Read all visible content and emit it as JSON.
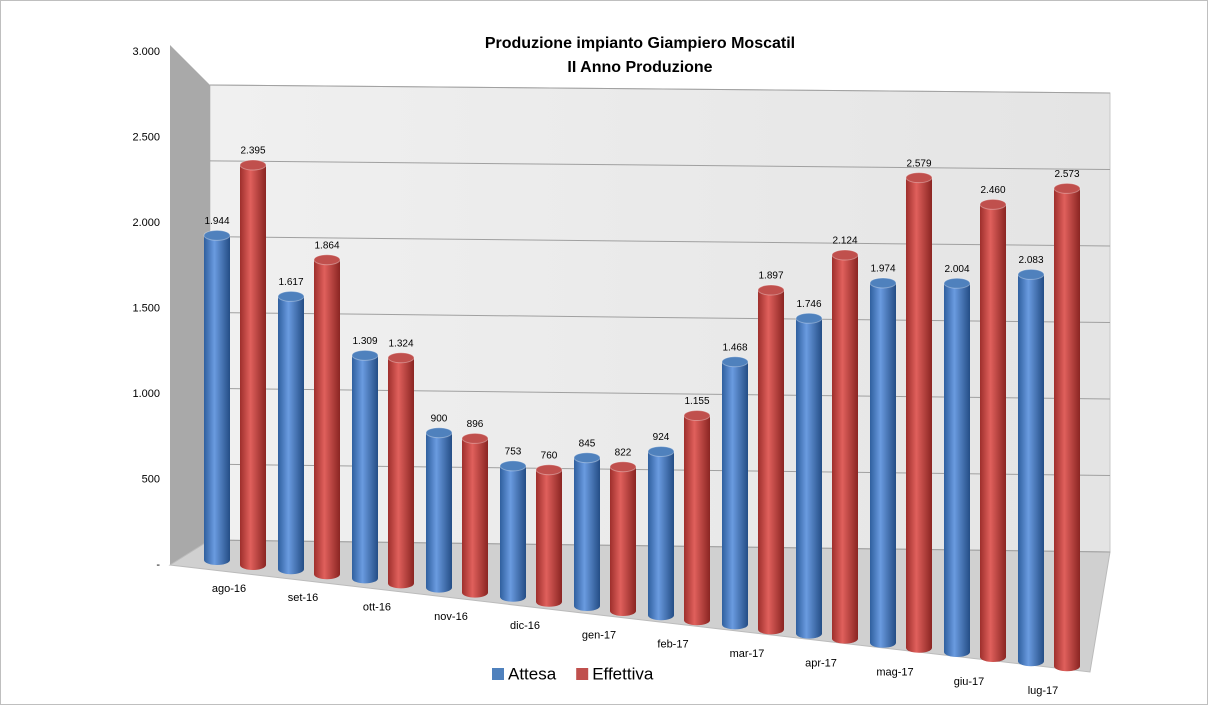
{
  "chart_data": {
    "type": "bar",
    "title": "Produzione impianto  Giampiero Moscatil",
    "subtitle": "II  Anno  Produzione",
    "categories": [
      "ago-16",
      "set-16",
      "ott-16",
      "nov-16",
      "dic-16",
      "gen-17",
      "feb-17",
      "mar-17",
      "apr-17",
      "mag-17",
      "giu-17",
      "lug-17"
    ],
    "series": [
      {
        "name": "Attesa",
        "color": "#4f81bd",
        "values": [
          1944,
          1617,
          1309,
          900,
          753,
          845,
          924,
          1468,
          1746,
          1974,
          2004,
          2083
        ],
        "value_labels": [
          "1.944",
          "1.617",
          "1.309",
          "900",
          "753",
          "845",
          "924",
          "1.468",
          "1.746",
          "1.974",
          "2.004",
          "2.083"
        ]
      },
      {
        "name": "Effettiva",
        "color": "#c0504d",
        "values": [
          2395,
          1864,
          1324,
          896,
          760,
          822,
          1155,
          1897,
          2124,
          2579,
          2460,
          2573
        ],
        "value_labels": [
          "2.395",
          "1.864",
          "1.324",
          "896",
          "760",
          "822",
          "1.155",
          "1.897",
          "2.124",
          "2.579",
          "2.460",
          "2.573"
        ]
      }
    ],
    "ylim": [
      0,
      3000
    ],
    "yticks": [
      {
        "value": 0,
        "label": "-"
      },
      500,
      {
        "value": 1000,
        "label": "1.000"
      },
      {
        "value": 1500,
        "label": "1.500"
      },
      {
        "value": 2000,
        "label": "2.000"
      },
      {
        "value": 2500,
        "label": "2.500"
      },
      {
        "value": 3000,
        "label": "3.000"
      }
    ],
    "grid": true,
    "legend": "bottom"
  }
}
